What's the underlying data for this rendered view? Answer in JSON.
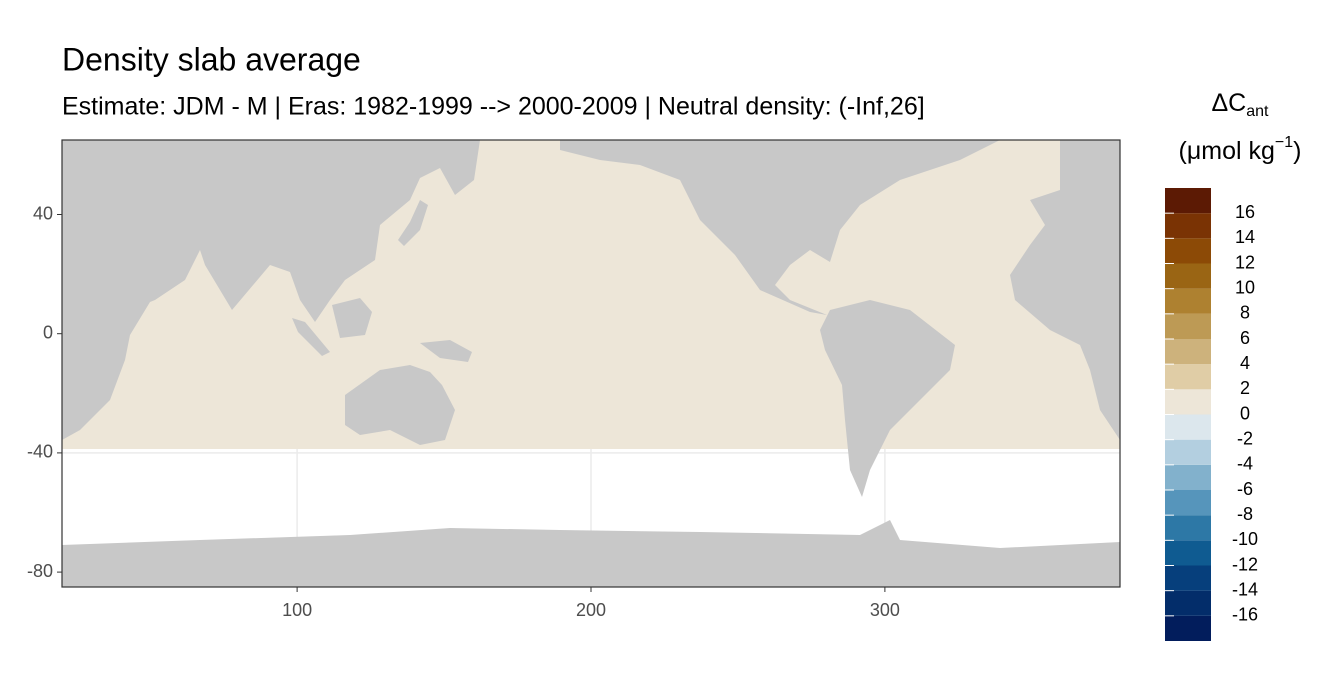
{
  "chart_data": {
    "type": "raster",
    "title": "Density slab average",
    "subtitle": "Estimate: JDM - M | Eras: 1982-1999 --> 2000-2009 | Neutral density: (-Inf,26]",
    "xlim": [
      20,
      380
    ],
    "ylim": [
      -85,
      65
    ],
    "xticks": [
      100,
      200,
      300
    ],
    "yticks": [
      40,
      0,
      -40,
      -80
    ],
    "grid": true,
    "colorbar": {
      "title": "ΔC",
      "title_sub": "ant",
      "units": "(μmol kg",
      "units_sup": "−1",
      "units_end": ")",
      "bins": [
        -18,
        -16,
        -14,
        -12,
        -10,
        -8,
        -6,
        -4,
        -2,
        0,
        2,
        4,
        6,
        8,
        10,
        12,
        14,
        16,
        18
      ],
      "colors": [
        "#021d5c",
        "#032d6a",
        "#063f7c",
        "#0f5b91",
        "#2d78a6",
        "#5695bb",
        "#82b1cc",
        "#b3cfe0",
        "#dce7ed",
        "#ede6d8",
        "#e0cda6",
        "#cdb27c",
        "#bd9a55",
        "#ae8130",
        "#9a6514",
        "#8c4a06",
        "#7a3304",
        "#5c1a04"
      ],
      "ticks": [
        16,
        14,
        12,
        10,
        8,
        6,
        4,
        2,
        0,
        -2,
        -4,
        -6,
        -8,
        -10,
        -12,
        -14,
        -16
      ]
    }
  }
}
